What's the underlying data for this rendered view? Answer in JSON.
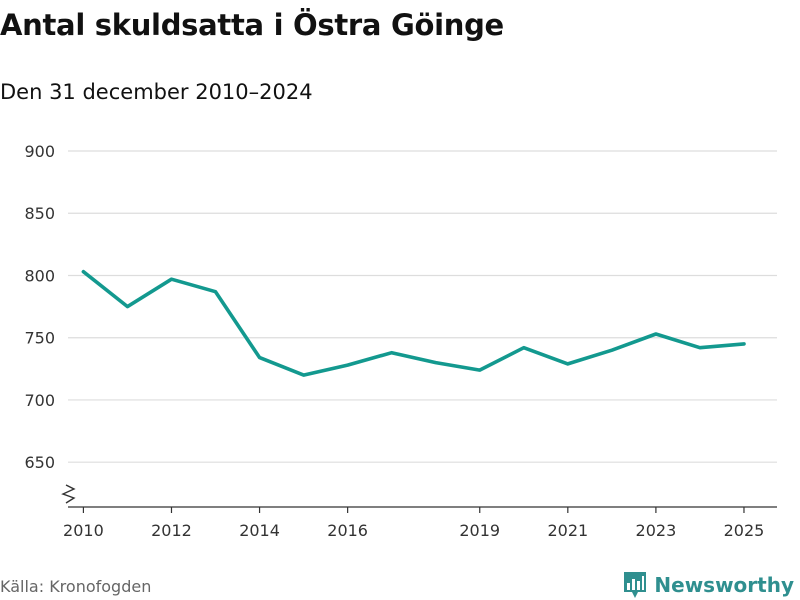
{
  "header": {
    "title": "Antal skuldsatta i Östra Göinge",
    "subtitle": "Den 31 december 2010–2024"
  },
  "footer": {
    "source": "Källa: Kronofogden",
    "brand": "Newsworthy",
    "brand_icon": "bar-chart-logo-icon"
  },
  "colors": {
    "line": "#13998f",
    "grid": "#dddddd",
    "axis": "#333333",
    "tick_text": "#333333",
    "brand": "#2f8f8f"
  },
  "chart_data": {
    "type": "line",
    "title": "Antal skuldsatta i Östra Göinge",
    "subtitle": "Den 31 december 2010–2024",
    "xlabel": "",
    "ylabel": "",
    "x": [
      2010,
      2011,
      2012,
      2013,
      2014,
      2015,
      2016,
      2017,
      2018,
      2019,
      2020,
      2021,
      2022,
      2023,
      2024,
      2025
    ],
    "series": [
      {
        "name": "Antal skuldsatta",
        "values": [
          803,
          775,
          797,
          787,
          734,
          720,
          728,
          738,
          730,
          724,
          742,
          729,
          740,
          753,
          742,
          745
        ]
      }
    ],
    "x_ticks": [
      2010,
      2012,
      2014,
      2016,
      2019,
      2021,
      2023,
      2025
    ],
    "y_ticks": [
      650,
      700,
      750,
      800,
      850,
      900
    ],
    "xlim": [
      2009.65,
      2025.75
    ],
    "ylim": [
      614,
      900
    ],
    "grid": true,
    "axis_break": true
  }
}
